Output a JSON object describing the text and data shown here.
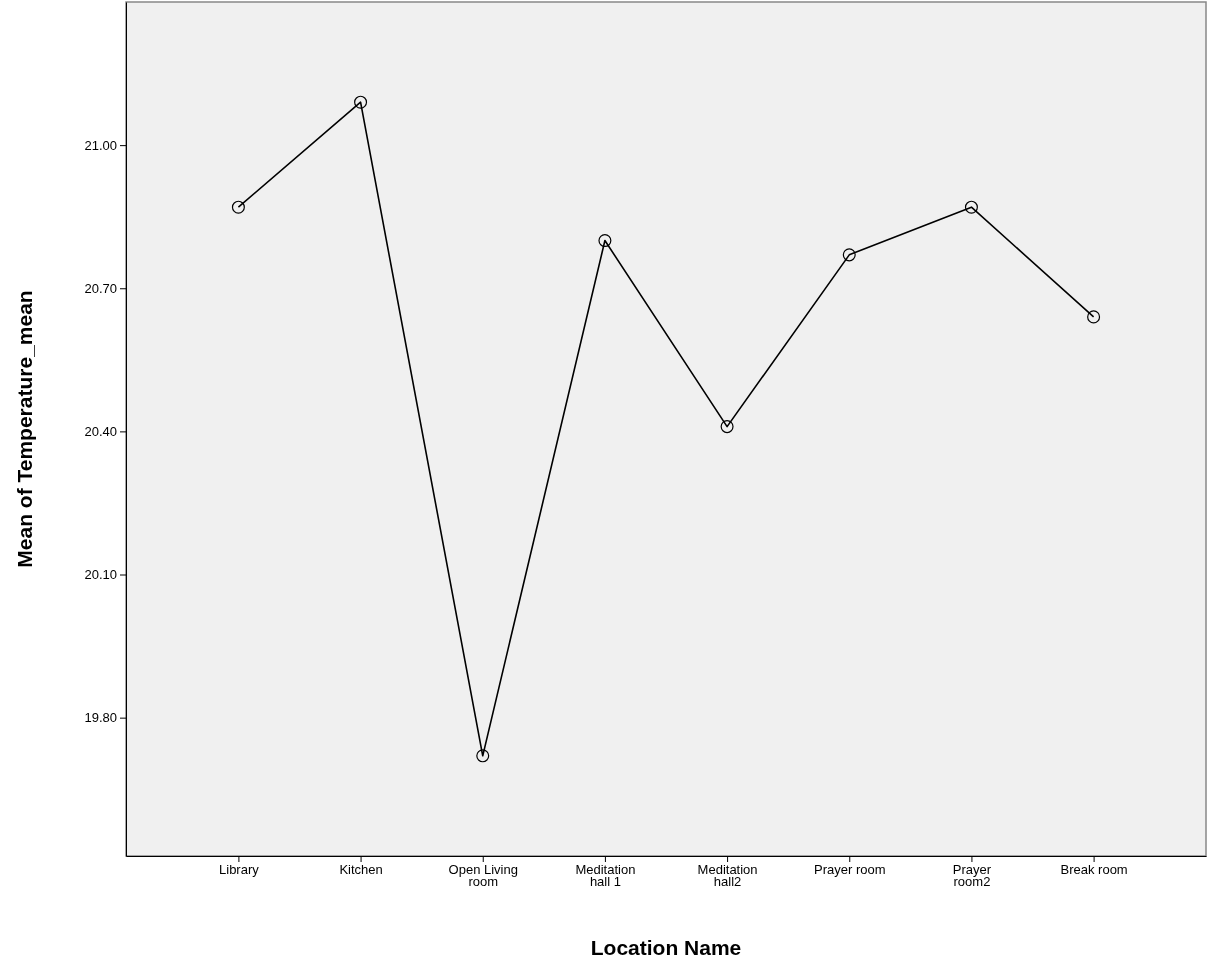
{
  "chart_data": {
    "type": "line",
    "xlabel": "Location Name",
    "ylabel": "Mean of Temperature_mean",
    "categories": [
      "Library",
      "Kitchen",
      "Open Living room",
      "Meditation hall 1",
      "Meditation hall2",
      "Prayer room",
      "Prayer room2",
      "Break room"
    ],
    "series": [
      {
        "color": "#000000",
        "values": [
          20.87,
          21.09,
          19.72,
          20.8,
          20.41,
          20.77,
          20.87,
          20.64
        ]
      }
    ],
    "ylim": [
      19.51,
      21.3
    ],
    "yticks": [
      {
        "value": 19.8,
        "label": "19.80"
      },
      {
        "value": 20.1,
        "label": "20.10"
      },
      {
        "value": 20.4,
        "label": "20.40"
      },
      {
        "value": 20.7,
        "label": "20.70"
      },
      {
        "value": 21.0,
        "label": "21.00"
      }
    ],
    "grid": false,
    "marker": "circle",
    "line_style": "solid"
  }
}
